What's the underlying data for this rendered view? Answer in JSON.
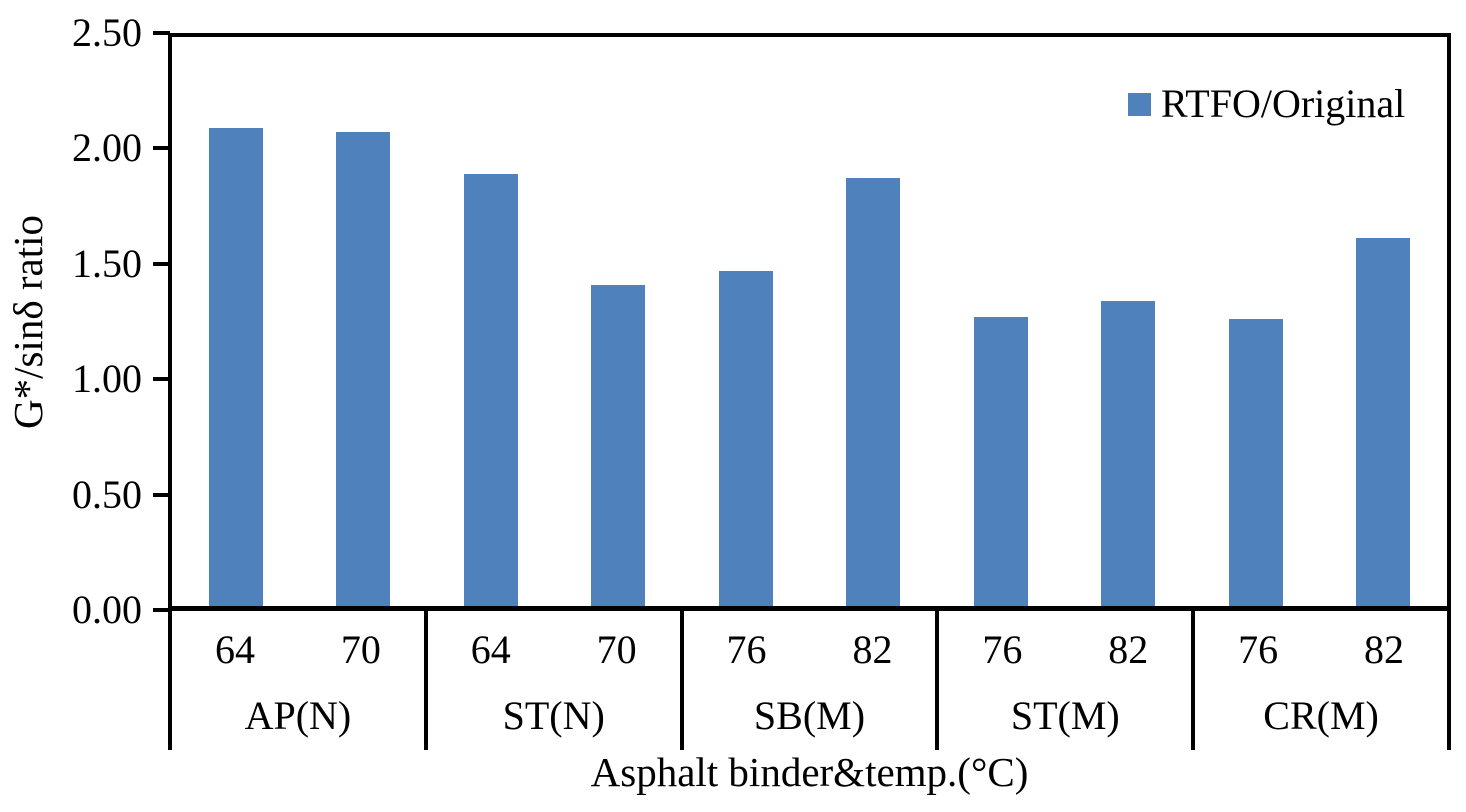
{
  "figure": {
    "background": "#ffffff",
    "text_color": "#000000",
    "axis_color": "#000000"
  },
  "chart_data": {
    "type": "bar",
    "title": "",
    "ylabel": "G*/sinδ ratio",
    "xlabel": "Asphalt binder&temp.(°C)",
    "ylim": [
      0,
      2.5
    ],
    "ytick_step": 0.5,
    "ytick_labels": [
      "0.00",
      "0.50",
      "1.00",
      "1.50",
      "2.00",
      "2.50"
    ],
    "grid": false,
    "bar_color": "#4F81BD",
    "legend_position": "top-right",
    "legend": [
      {
        "label": "RTFO/Original",
        "color": "#4F81BD"
      }
    ],
    "series": [
      {
        "name": "RTFO/Original",
        "values": [
          2.09,
          2.07,
          1.89,
          1.41,
          1.47,
          1.87,
          1.27,
          1.34,
          1.26,
          1.61
        ]
      }
    ],
    "categories": [
      "64",
      "70",
      "64",
      "70",
      "76",
      "82",
      "76",
      "82",
      "76",
      "82"
    ],
    "groups": [
      {
        "label": "AP(N)",
        "categories": [
          "64",
          "70"
        ],
        "values": [
          2.09,
          2.07
        ]
      },
      {
        "label": "ST(N)",
        "categories": [
          "64",
          "70"
        ],
        "values": [
          1.89,
          1.41
        ]
      },
      {
        "label": "SB(M)",
        "categories": [
          "76",
          "82"
        ],
        "values": [
          1.47,
          1.87
        ]
      },
      {
        "label": "ST(M)",
        "categories": [
          "76",
          "82"
        ],
        "values": [
          1.27,
          1.34
        ]
      },
      {
        "label": "CR(M)",
        "categories": [
          "76",
          "82"
        ],
        "values": [
          1.26,
          1.61
        ]
      }
    ]
  }
}
